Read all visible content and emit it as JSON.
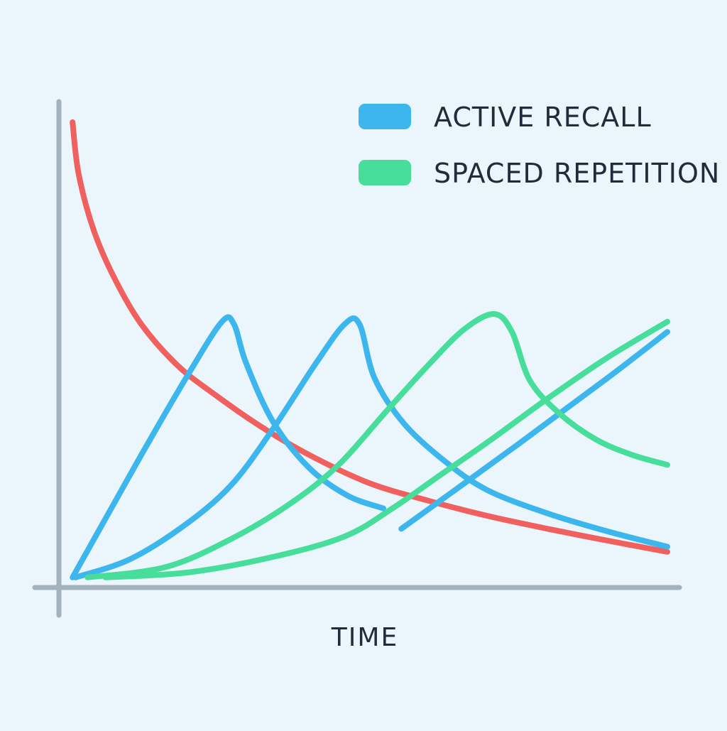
{
  "chart_data": {
    "type": "line",
    "title": "",
    "xlabel": "TIME",
    "ylabel": "",
    "xlim": [
      0,
      10
    ],
    "ylim": [
      0,
      10
    ],
    "grid": false,
    "legend": {
      "position": "top-right",
      "entries": [
        {
          "label": "ACTIVE RECALL",
          "color": "#3db6ee"
        },
        {
          "label": "SPACED REPETITION",
          "color": "#47de9b"
        }
      ]
    },
    "series": [
      {
        "key": "forgetting",
        "color": "#f0605f",
        "segments": [
          [
            [
              0.05,
              9.0
            ],
            [
              0.15,
              8.0
            ],
            [
              0.4,
              6.9
            ],
            [
              0.75,
              5.95
            ],
            [
              1.2,
              5.05
            ],
            [
              1.8,
              4.25
            ],
            [
              2.4,
              3.7
            ],
            [
              3.2,
              3.05
            ],
            [
              4.0,
              2.5
            ],
            [
              5.0,
              1.95
            ],
            [
              6.0,
              1.6
            ],
            [
              7.0,
              1.3
            ],
            [
              8.0,
              1.05
            ],
            [
              9.0,
              0.82
            ],
            [
              10.0,
              0.6
            ]
          ]
        ]
      },
      {
        "key": "active-recall",
        "name": "ACTIVE RECALL",
        "color": "#3db6ee",
        "segments": [
          [
            [
              0.05,
              0.1
            ],
            [
              0.65,
              1.35
            ],
            [
              1.3,
              2.7
            ],
            [
              2.0,
              4.1
            ],
            [
              2.55,
              5.1
            ],
            [
              2.75,
              5.05
            ],
            [
              2.95,
              4.3
            ],
            [
              3.4,
              3.15
            ],
            [
              4.0,
              2.25
            ],
            [
              4.65,
              1.7
            ],
            [
              5.25,
              1.45
            ]
          ],
          [
            [
              0.1,
              0.1
            ],
            [
              1.0,
              0.45
            ],
            [
              1.9,
              1.1
            ],
            [
              2.7,
              1.9
            ],
            [
              3.4,
              3.0
            ],
            [
              4.1,
              4.25
            ],
            [
              4.6,
              5.05
            ],
            [
              4.85,
              5.05
            ],
            [
              5.1,
              4.0
            ],
            [
              5.6,
              3.1
            ],
            [
              6.3,
              2.35
            ],
            [
              7.0,
              1.8
            ],
            [
              8.0,
              1.35
            ],
            [
              9.0,
              1.0
            ],
            [
              10.0,
              0.7
            ]
          ],
          [
            [
              5.55,
              1.05
            ],
            [
              7.5,
              2.7
            ],
            [
              9.0,
              4.0
            ],
            [
              10.0,
              4.9
            ]
          ]
        ]
      },
      {
        "key": "spaced-repetition",
        "name": "SPACED REPETITION",
        "color": "#47de9b",
        "segments": [
          [
            [
              0.3,
              0.1
            ],
            [
              1.6,
              0.3
            ],
            [
              2.7,
              0.85
            ],
            [
              3.7,
              1.55
            ],
            [
              4.5,
              2.3
            ],
            [
              5.3,
              3.35
            ],
            [
              6.0,
              4.25
            ],
            [
              6.6,
              4.95
            ],
            [
              7.1,
              5.25
            ],
            [
              7.4,
              4.9
            ],
            [
              7.7,
              3.95
            ],
            [
              8.2,
              3.3
            ],
            [
              8.8,
              2.8
            ],
            [
              9.4,
              2.5
            ],
            [
              10.0,
              2.3
            ]
          ],
          [
            [
              0.6,
              0.1
            ],
            [
              2.0,
              0.2
            ],
            [
              3.4,
              0.5
            ],
            [
              4.6,
              0.9
            ],
            [
              5.4,
              1.45
            ],
            [
              6.2,
              2.1
            ],
            [
              7.0,
              2.75
            ],
            [
              8.0,
              3.6
            ],
            [
              9.0,
              4.4
            ],
            [
              10.0,
              5.1
            ]
          ]
        ]
      }
    ]
  }
}
